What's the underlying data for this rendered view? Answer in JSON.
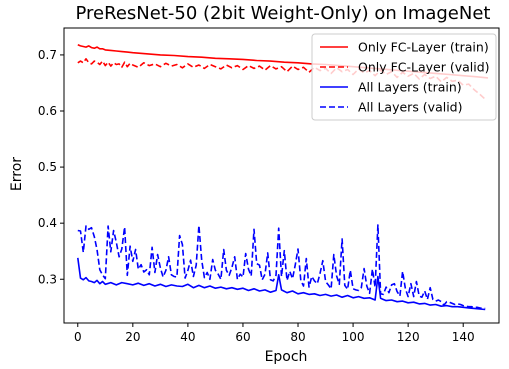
{
  "chart_data": {
    "type": "line",
    "title": "PreResNet-50 (2bit Weight-Only) on ImageNet",
    "xlabel": "Epoch",
    "ylabel": "Error",
    "xlim": [
      -5,
      153
    ],
    "ylim": [
      0.222,
      0.748
    ],
    "xticks": [
      0,
      20,
      40,
      60,
      80,
      100,
      120,
      140
    ],
    "yticks": [
      0.3,
      0.4,
      0.5,
      0.6,
      0.7
    ],
    "grid": false,
    "legend_position": "top-right",
    "series": [
      {
        "name": "Only FC-Layer (train)",
        "color": "#ff0000",
        "dash": "solid",
        "x": [
          0,
          1,
          2,
          3,
          4,
          5,
          6,
          7,
          8,
          9,
          10,
          12,
          14,
          16,
          18,
          20,
          25,
          30,
          35,
          40,
          45,
          50,
          55,
          60,
          65,
          70,
          75,
          80,
          85,
          90,
          95,
          100,
          105,
          110,
          115,
          120,
          125,
          130,
          135,
          140,
          145,
          149
        ],
        "y": [
          0.718,
          0.716,
          0.715,
          0.714,
          0.716,
          0.713,
          0.712,
          0.714,
          0.711,
          0.711,
          0.709,
          0.708,
          0.707,
          0.706,
          0.705,
          0.704,
          0.702,
          0.7,
          0.699,
          0.697,
          0.696,
          0.694,
          0.693,
          0.692,
          0.69,
          0.689,
          0.687,
          0.686,
          0.684,
          0.683,
          0.681,
          0.679,
          0.677,
          0.675,
          0.673,
          0.671,
          0.669,
          0.667,
          0.665,
          0.663,
          0.661,
          0.659
        ]
      },
      {
        "name": "Only FC-Layer (valid)",
        "color": "#ff0000",
        "dash": "dashed",
        "x": [
          0,
          1,
          2,
          3,
          4,
          5,
          6,
          7,
          8,
          9,
          10,
          11,
          12,
          13,
          14,
          15,
          16,
          17,
          18,
          19,
          20,
          22,
          24,
          26,
          28,
          30,
          32,
          34,
          36,
          38,
          40,
          42,
          44,
          46,
          48,
          50,
          52,
          54,
          56,
          58,
          60,
          62,
          64,
          66,
          68,
          70,
          72,
          74,
          76,
          78,
          80,
          82,
          84,
          86,
          88,
          90,
          92,
          94,
          96,
          98,
          100,
          102,
          104,
          106,
          108,
          110,
          112,
          114,
          116,
          118,
          120,
          122,
          124,
          126,
          128,
          130,
          132,
          134,
          136,
          138,
          140,
          142,
          144,
          146,
          148
        ],
        "y": [
          0.686,
          0.689,
          0.686,
          0.693,
          0.686,
          0.684,
          0.689,
          0.687,
          0.683,
          0.689,
          0.681,
          0.687,
          0.68,
          0.686,
          0.683,
          0.684,
          0.678,
          0.687,
          0.679,
          0.685,
          0.682,
          0.678,
          0.686,
          0.681,
          0.684,
          0.679,
          0.685,
          0.68,
          0.683,
          0.677,
          0.684,
          0.678,
          0.682,
          0.676,
          0.683,
          0.679,
          0.675,
          0.682,
          0.677,
          0.681,
          0.674,
          0.681,
          0.676,
          0.68,
          0.673,
          0.681,
          0.675,
          0.679,
          0.67,
          0.68,
          0.674,
          0.678,
          0.669,
          0.678,
          0.672,
          0.676,
          0.667,
          0.677,
          0.67,
          0.674,
          0.665,
          0.675,
          0.668,
          0.672,
          0.663,
          0.673,
          0.665,
          0.67,
          0.66,
          0.669,
          0.662,
          0.667,
          0.657,
          0.665,
          0.658,
          0.662,
          0.652,
          0.66,
          0.653,
          0.655,
          0.646,
          0.648,
          0.638,
          0.63,
          0.621
        ]
      },
      {
        "name": "All Layers (train)",
        "color": "#0000ff",
        "dash": "solid",
        "x": [
          0,
          1,
          2,
          3,
          4,
          5,
          6,
          7,
          8,
          9,
          10,
          12,
          14,
          16,
          18,
          20,
          22,
          24,
          26,
          28,
          30,
          32,
          34,
          36,
          38,
          40,
          42,
          44,
          46,
          48,
          50,
          52,
          54,
          56,
          58,
          60,
          62,
          64,
          66,
          68,
          70,
          72,
          73,
          74,
          76,
          78,
          80,
          82,
          84,
          86,
          88,
          90,
          92,
          94,
          96,
          98,
          100,
          102,
          104,
          106,
          108,
          109,
          110,
          112,
          114,
          116,
          118,
          120,
          122,
          124,
          126,
          128,
          130,
          132,
          134,
          136,
          138,
          140,
          142,
          144,
          146,
          148
        ],
        "y": [
          0.338,
          0.302,
          0.299,
          0.303,
          0.297,
          0.296,
          0.294,
          0.298,
          0.292,
          0.296,
          0.291,
          0.294,
          0.29,
          0.294,
          0.292,
          0.29,
          0.293,
          0.289,
          0.292,
          0.288,
          0.291,
          0.287,
          0.29,
          0.288,
          0.287,
          0.291,
          0.285,
          0.289,
          0.285,
          0.288,
          0.284,
          0.286,
          0.283,
          0.285,
          0.282,
          0.284,
          0.28,
          0.283,
          0.279,
          0.281,
          0.277,
          0.28,
          0.308,
          0.281,
          0.276,
          0.279,
          0.274,
          0.276,
          0.273,
          0.274,
          0.271,
          0.273,
          0.27,
          0.272,
          0.268,
          0.271,
          0.267,
          0.269,
          0.266,
          0.267,
          0.263,
          0.305,
          0.266,
          0.262,
          0.263,
          0.26,
          0.261,
          0.258,
          0.259,
          0.256,
          0.257,
          0.254,
          0.255,
          0.252,
          0.253,
          0.251,
          0.251,
          0.25,
          0.249,
          0.248,
          0.247,
          0.246
        ]
      },
      {
        "name": "All Layers (valid)",
        "color": "#0000ff",
        "dash": "dashed",
        "x": [
          0,
          1,
          2,
          3,
          4,
          5,
          6,
          7,
          8,
          9,
          10,
          11,
          12,
          13,
          14,
          15,
          16,
          17,
          18,
          19,
          20,
          21,
          22,
          23,
          24,
          25,
          26,
          27,
          28,
          29,
          30,
          31,
          32,
          33,
          34,
          35,
          36,
          37,
          38,
          39,
          40,
          41,
          42,
          43,
          44,
          45,
          46,
          47,
          48,
          49,
          50,
          51,
          52,
          53,
          54,
          55,
          56,
          57,
          58,
          59,
          60,
          61,
          62,
          63,
          64,
          65,
          66,
          67,
          68,
          69,
          70,
          71,
          72,
          73,
          74,
          75,
          76,
          77,
          78,
          79,
          80,
          81,
          82,
          83,
          84,
          85,
          86,
          87,
          88,
          89,
          90,
          91,
          92,
          93,
          94,
          95,
          96,
          97,
          98,
          99,
          100,
          101,
          102,
          103,
          104,
          105,
          106,
          107,
          108,
          109,
          110,
          111,
          112,
          113,
          114,
          115,
          116,
          117,
          118,
          119,
          120,
          121,
          122,
          123,
          124,
          125,
          126,
          127,
          128,
          129,
          130,
          131,
          132,
          133,
          134,
          135,
          136,
          137,
          138,
          139,
          140,
          141,
          142,
          143,
          144,
          145,
          146,
          147,
          148
        ],
        "y": [
          0.387,
          0.386,
          0.348,
          0.395,
          0.389,
          0.392,
          0.376,
          0.353,
          0.317,
          0.308,
          0.301,
          0.395,
          0.349,
          0.387,
          0.366,
          0.34,
          0.354,
          0.393,
          0.307,
          0.359,
          0.332,
          0.353,
          0.318,
          0.326,
          0.313,
          0.317,
          0.308,
          0.357,
          0.312,
          0.344,
          0.32,
          0.304,
          0.316,
          0.34,
          0.308,
          0.305,
          0.304,
          0.378,
          0.362,
          0.302,
          0.316,
          0.334,
          0.305,
          0.325,
          0.396,
          0.334,
          0.303,
          0.312,
          0.3,
          0.335,
          0.316,
          0.309,
          0.3,
          0.353,
          0.316,
          0.307,
          0.321,
          0.34,
          0.3,
          0.309,
          0.304,
          0.346,
          0.318,
          0.306,
          0.389,
          0.328,
          0.325,
          0.299,
          0.309,
          0.347,
          0.299,
          0.297,
          0.307,
          0.391,
          0.305,
          0.351,
          0.298,
          0.314,
          0.301,
          0.326,
          0.354,
          0.298,
          0.288,
          0.337,
          0.286,
          0.305,
          0.297,
          0.292,
          0.31,
          0.333,
          0.296,
          0.29,
          0.283,
          0.344,
          0.306,
          0.291,
          0.372,
          0.289,
          0.282,
          0.316,
          0.283,
          0.281,
          0.28,
          0.285,
          0.319,
          0.288,
          0.275,
          0.318,
          0.286,
          0.397,
          0.274,
          0.273,
          0.286,
          0.276,
          0.29,
          0.292,
          0.278,
          0.27,
          0.314,
          0.283,
          0.269,
          0.292,
          0.269,
          0.296,
          0.27,
          0.268,
          0.279,
          0.264,
          0.285,
          0.264,
          0.261,
          0.263,
          0.26,
          0.254,
          0.26,
          0.259,
          0.257,
          0.255,
          0.256,
          0.255,
          0.253,
          0.252,
          0.251,
          0.251,
          0.25,
          0.25,
          0.249,
          0.248,
          0.248
        ]
      }
    ]
  }
}
